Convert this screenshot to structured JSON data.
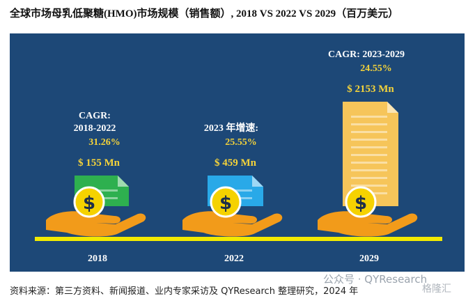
{
  "title": "全球市场母乳低聚糖(HMO)市场规模（销售额）, 2018 VS 2022 VS 2029（百万美元）",
  "source": "资料来源：第三方资料、新闻报道、业内专家采访及 QYResearch 整理研究，2024 年",
  "watermark": "公众号 · QYResearch",
  "watermark_badge": "格隆汇",
  "colors": {
    "panel": "#1d4877",
    "baseline": "#f2ea00",
    "growth_text": "#f5d33a",
    "amount_text": "#f5d33a",
    "label_text": "#ffffff",
    "hand": "#f29b1a",
    "coin": "#f5d200",
    "doc_2018": "#2eb04f",
    "doc_2022": "#29a9e8",
    "doc_2029": "#f6c55a"
  },
  "chart_data": {
    "type": "bar",
    "categories": [
      "2018",
      "2022",
      "2029"
    ],
    "values": [
      155,
      459,
      2153
    ],
    "value_labels": [
      "$ 155 Mn",
      "$ 459 Mn",
      "$ 2153 Mn"
    ],
    "annotations": [
      {
        "label_lines": [
          "CAGR:",
          "2018-2022"
        ],
        "value": "31.26%"
      },
      {
        "label_lines": [
          "2023 年增速:"
        ],
        "value": "25.55%"
      },
      {
        "label_lines": [
          "CAGR: 2023-2029"
        ],
        "value": "24.55%"
      }
    ],
    "icons": [
      "hand-coin-cash-icon",
      "hand-coin-document-icon",
      "hand-coin-document-icon"
    ]
  }
}
